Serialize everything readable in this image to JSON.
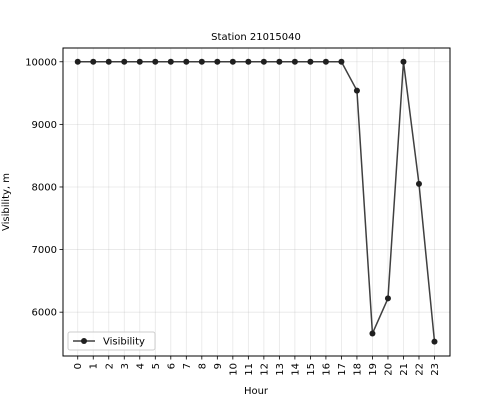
{
  "chart_data": {
    "type": "line",
    "title": "Station 21015040",
    "xlabel": "Hour",
    "ylabel": "Visibility, m",
    "categories": [
      "0",
      "1",
      "2",
      "3",
      "4",
      "5",
      "6",
      "7",
      "8",
      "9",
      "10",
      "11",
      "12",
      "13",
      "14",
      "15",
      "16",
      "17",
      "18",
      "19",
      "20",
      "21",
      "22",
      "23"
    ],
    "series": [
      {
        "name": "Visibility",
        "color": "#1f1f1f",
        "values": [
          10000,
          10000,
          10000,
          10000,
          10000,
          10000,
          10000,
          10000,
          10000,
          10000,
          10000,
          10000,
          10000,
          10000,
          10000,
          10000,
          10000,
          10000,
          9540,
          5660,
          6220,
          10000,
          8050,
          5530
        ]
      }
    ],
    "xlim": [
      -0.95,
      24.0
    ],
    "ylim": [
      5300,
      10220
    ],
    "yticks": [
      6000,
      7000,
      8000,
      9000,
      10000
    ],
    "grid": true,
    "legend_position": "lower left"
  }
}
